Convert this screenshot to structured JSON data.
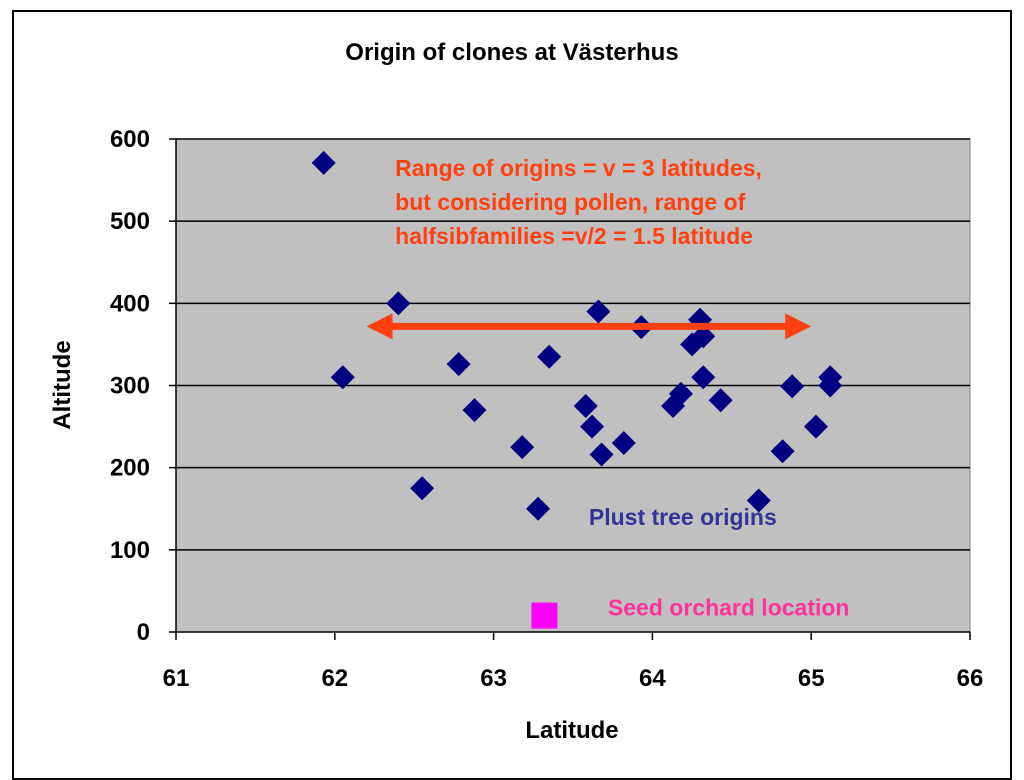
{
  "chart_data": {
    "type": "scatter",
    "title": "Origin of clones at Västerhus",
    "xlabel": "Latitude",
    "ylabel": "Altitude",
    "xlim": [
      61,
      66
    ],
    "ylim": [
      0,
      600
    ],
    "x_ticks": [
      "61",
      "62",
      "63",
      "64",
      "65",
      "66"
    ],
    "y_ticks": [
      "0",
      "100",
      "200",
      "300",
      "400",
      "500",
      "600"
    ],
    "grid": "horizontal",
    "plot_background": "#c0c0c0",
    "series": [
      {
        "marker": "diamond",
        "color": "#000080",
        "points": [
          [
            61.93,
            571
          ],
          [
            62.05,
            310
          ],
          [
            62.4,
            400
          ],
          [
            62.55,
            175
          ],
          [
            62.78,
            326
          ],
          [
            62.88,
            270
          ],
          [
            63.18,
            225
          ],
          [
            63.28,
            150
          ],
          [
            63.35,
            335
          ],
          [
            63.58,
            275
          ],
          [
            63.62,
            250
          ],
          [
            63.66,
            390
          ],
          [
            63.68,
            216
          ],
          [
            63.82,
            230
          ],
          [
            63.93,
            371
          ],
          [
            64.13,
            275
          ],
          [
            64.18,
            290
          ],
          [
            64.25,
            350
          ],
          [
            64.3,
            380
          ],
          [
            64.32,
            360
          ],
          [
            64.32,
            310
          ],
          [
            64.43,
            282
          ],
          [
            64.67,
            160
          ],
          [
            64.82,
            220
          ],
          [
            64.88,
            299
          ],
          [
            65.03,
            250
          ],
          [
            65.12,
            310
          ],
          [
            65.12,
            300
          ]
        ]
      },
      {
        "marker": "square",
        "color": "#ff00ff",
        "points": [
          [
            63.32,
            20
          ]
        ]
      }
    ],
    "arrow": {
      "x1": 62.2,
      "x2": 65.0,
      "y": 372,
      "color": "#ff4010"
    },
    "annotations": [
      {
        "lines": [
          "Range of origins = v = 3 latitudes,",
          "but considering pollen, range of",
          "halfsibfamilies =v/2 = 1.5 latitude"
        ],
        "color": "#ff4010",
        "x": 62.38,
        "y": 555
      },
      {
        "lines": [
          "Plust tree origins"
        ],
        "color": "#333399",
        "x": 63.6,
        "y": 130
      },
      {
        "lines": [
          "Seed orchard location"
        ],
        "color": "#ff3399",
        "x": 63.72,
        "y": 20
      }
    ]
  }
}
